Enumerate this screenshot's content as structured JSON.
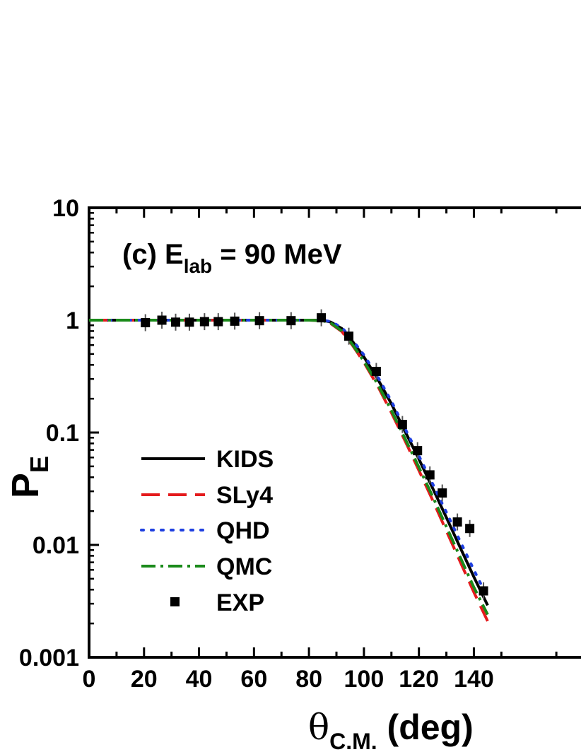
{
  "chart_data": {
    "type": "line",
    "annotation": {
      "prefix": "(c) E",
      "subscript": "lab",
      "suffix": " = 90 MeV"
    },
    "xlabel": {
      "symbol": "θ",
      "subscript": "C.M.",
      "suffix": " (deg)"
    },
    "ylabel": {
      "main": "P",
      "subscript": "E"
    },
    "xlim": [
      0,
      180
    ],
    "ylim": [
      0.001,
      10
    ],
    "yscale": "log",
    "x_ticks": [
      0,
      20,
      40,
      60,
      80,
      100,
      120,
      140
    ],
    "x_tick_labels": [
      "0",
      "20",
      "40",
      "60",
      "80",
      "100",
      "120",
      "140"
    ],
    "y_ticks": [
      0.001,
      0.01,
      0.1,
      1,
      10
    ],
    "y_tick_labels": [
      "0.001",
      "0.01",
      "0.1",
      "1",
      "10"
    ],
    "grid": false,
    "legend_position": "lower-left",
    "series": [
      {
        "name": "KIDS",
        "style": "solid",
        "color": "#000000",
        "x": [
          0,
          20,
          40,
          60,
          80,
          85,
          88,
          92,
          96,
          100,
          105,
          110,
          115,
          120,
          125,
          130,
          135,
          140,
          145
        ],
        "y": [
          1.0,
          1.0,
          1.0,
          1.0,
          1.0,
          1.0,
          0.96,
          0.84,
          0.64,
          0.47,
          0.3,
          0.18,
          0.102,
          0.058,
          0.032,
          0.0175,
          0.0095,
          0.0052,
          0.0029
        ]
      },
      {
        "name": "SLy4",
        "style": "dashed",
        "color": "#e41a1c",
        "x": [
          0,
          20,
          40,
          60,
          80,
          85,
          88,
          92,
          96,
          100,
          105,
          110,
          115,
          120,
          125,
          130,
          135,
          140,
          145
        ],
        "y": [
          1.0,
          1.0,
          1.0,
          1.0,
          1.0,
          0.99,
          0.93,
          0.79,
          0.59,
          0.42,
          0.26,
          0.15,
          0.084,
          0.046,
          0.025,
          0.0133,
          0.0071,
          0.0038,
          0.0021
        ]
      },
      {
        "name": "QHD",
        "style": "dotted",
        "color": "#1f3fe0",
        "x": [
          0,
          20,
          40,
          60,
          80,
          85,
          88,
          92,
          96,
          100,
          105,
          110,
          115,
          120,
          125,
          130,
          135,
          140,
          145
        ],
        "y": [
          1.0,
          1.0,
          1.0,
          1.0,
          1.0,
          1.0,
          0.97,
          0.86,
          0.66,
          0.49,
          0.315,
          0.19,
          0.108,
          0.062,
          0.035,
          0.0195,
          0.0108,
          0.006,
          0.0034
        ]
      },
      {
        "name": "QMC",
        "style": "dashdot",
        "color": "#1a8a1a",
        "x": [
          0,
          20,
          40,
          60,
          80,
          85,
          88,
          92,
          96,
          100,
          105,
          110,
          115,
          120,
          125,
          130,
          135,
          140,
          145
        ],
        "y": [
          1.0,
          1.0,
          1.0,
          1.0,
          1.0,
          0.99,
          0.94,
          0.8,
          0.6,
          0.43,
          0.27,
          0.157,
          0.088,
          0.049,
          0.027,
          0.0145,
          0.0078,
          0.0042,
          0.0024
        ]
      }
    ],
    "points": {
      "name": "EXP",
      "marker": "square",
      "color": "#000000",
      "x": [
        20.5,
        26.5,
        31.5,
        36.5,
        42.0,
        47.0,
        53.0,
        62.0,
        73.5,
        84.5,
        94.5,
        104.5,
        114.0,
        119.5,
        124.0,
        128.5,
        134.0,
        138.5,
        143.5
      ],
      "y": [
        0.95,
        1.0,
        0.96,
        0.96,
        0.97,
        0.97,
        0.98,
        0.99,
        0.99,
        1.05,
        0.72,
        0.35,
        0.118,
        0.069,
        0.042,
        0.029,
        0.016,
        0.014,
        0.0039
      ]
    }
  }
}
